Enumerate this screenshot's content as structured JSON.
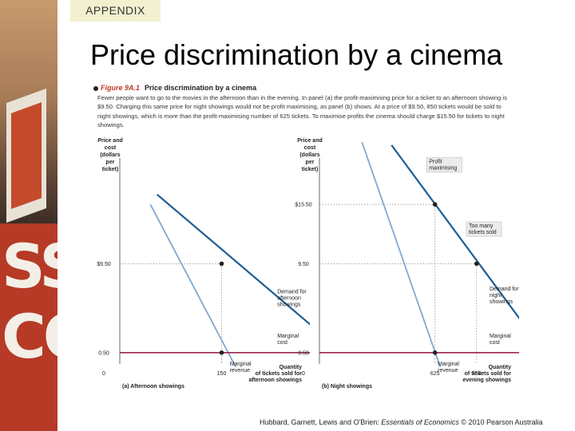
{
  "slide": {
    "tag": "APPENDIX",
    "title": "Price discrimination by a cinema",
    "credit_prefix": "Hubbard, Garnett, Lewis and O'Brien: ",
    "credit_book": "Essentials of Economics",
    "credit_suffix": " © 2010 Pearson Australia"
  },
  "figure": {
    "number": "Figure 9A.1",
    "heading": "Price discrimination by a cinema",
    "caption": "Fewer people want to go to the movies in the afternoon than in the evening. In panel (a) the profit-maximising price for a ticket to an afternoon showing is $9.50. Charging this same price for night showings would not be profit maximising, as panel (b) shows. At a price of $9.50, 850 tickets would be sold to night showings, which is more than the profit-maximising number of 625 tickets. To maximise profits the cinema should charge $15.50 for tickets to night showings."
  },
  "colors": {
    "demand": "#1d5d94",
    "marginal_revenue": "#7ea9d1",
    "marginal_cost": "#9b2450",
    "dotted": "#888888",
    "tag_bg": "#f2f0cf"
  },
  "chart_data": [
    {
      "type": "line",
      "panel_label": "(a) Afternoon showings",
      "ylabel": "Price and cost (dollars per ticket)",
      "xlabel": "Quantity of tickets sold for afternoon showings",
      "xlim": [
        0,
        280
      ],
      "ylim": [
        0,
        21
      ],
      "y_ticks": [
        {
          "v": 0.5,
          "label": "0.50"
        },
        {
          "v": 9.5,
          "label": "$9.50"
        }
      ],
      "x_ticks": [
        {
          "v": 0,
          "label": "0"
        },
        {
          "v": 150,
          "label": "150"
        }
      ],
      "series": [
        {
          "name": "Demand for afternoon showings",
          "role": "demand",
          "x": [
            55,
            295
          ],
          "y": [
            16.5,
            2.5
          ]
        },
        {
          "name": "Marginal revenue",
          "role": "mr",
          "x": [
            45,
            175
          ],
          "y": [
            15.5,
            -1.5
          ]
        },
        {
          "name": "Marginal cost",
          "role": "mc",
          "x": [
            0,
            280
          ],
          "y": [
            0.5,
            0.5
          ]
        }
      ],
      "points": [
        {
          "x": 150,
          "y": 9.5
        },
        {
          "x": 150,
          "y": 0.5
        }
      ],
      "labels": [
        {
          "text": "Demand for afternoon showings",
          "x": 232,
          "y": 6.5
        },
        {
          "text": "Marginal cost",
          "x": 232,
          "y": 2.0
        },
        {
          "text": "Marginal revenue",
          "x": 162,
          "y": -0.8
        }
      ]
    },
    {
      "type": "line",
      "panel_label": "(b) Night showings",
      "ylabel": "Price and cost (dollars per ticket)",
      "xlabel": "Quantity of tickets sold for evening showings",
      "xlim": [
        0,
        1080
      ],
      "ylim": [
        0,
        21
      ],
      "y_ticks": [
        {
          "v": 0.5,
          "label": "0.50"
        },
        {
          "v": 9.5,
          "label": "9.50"
        },
        {
          "v": 15.5,
          "label": "$15.50"
        }
      ],
      "x_ticks": [
        {
          "v": 0,
          "label": "0"
        },
        {
          "v": 625,
          "label": "625"
        },
        {
          "v": 850,
          "label": "850"
        }
      ],
      "series": [
        {
          "name": "Demand for night showings",
          "role": "demand",
          "x": [
            390,
            1100
          ],
          "y": [
            21.5,
            3.5
          ]
        },
        {
          "name": "Marginal revenue",
          "role": "mr",
          "x": [
            230,
            660
          ],
          "y": [
            21.8,
            -1.3
          ]
        },
        {
          "name": "Marginal cost",
          "role": "mc",
          "x": [
            0,
            1080
          ],
          "y": [
            0.5,
            0.5
          ]
        }
      ],
      "points": [
        {
          "x": 625,
          "y": 15.5
        },
        {
          "x": 850,
          "y": 9.5
        },
        {
          "x": 625,
          "y": 0.5
        }
      ],
      "labels": [
        {
          "text": "Demand for night showings",
          "x": 920,
          "y": 6.8
        },
        {
          "text": "Marginal cost",
          "x": 920,
          "y": 2.0
        },
        {
          "text": "Marginal revenue",
          "x": 640,
          "y": -0.8
        }
      ],
      "callouts": [
        {
          "text": "Profit maximising",
          "x": 580,
          "y": 19.5
        },
        {
          "text": "Too many tickets sold",
          "x": 795,
          "y": 13.0
        }
      ]
    }
  ]
}
